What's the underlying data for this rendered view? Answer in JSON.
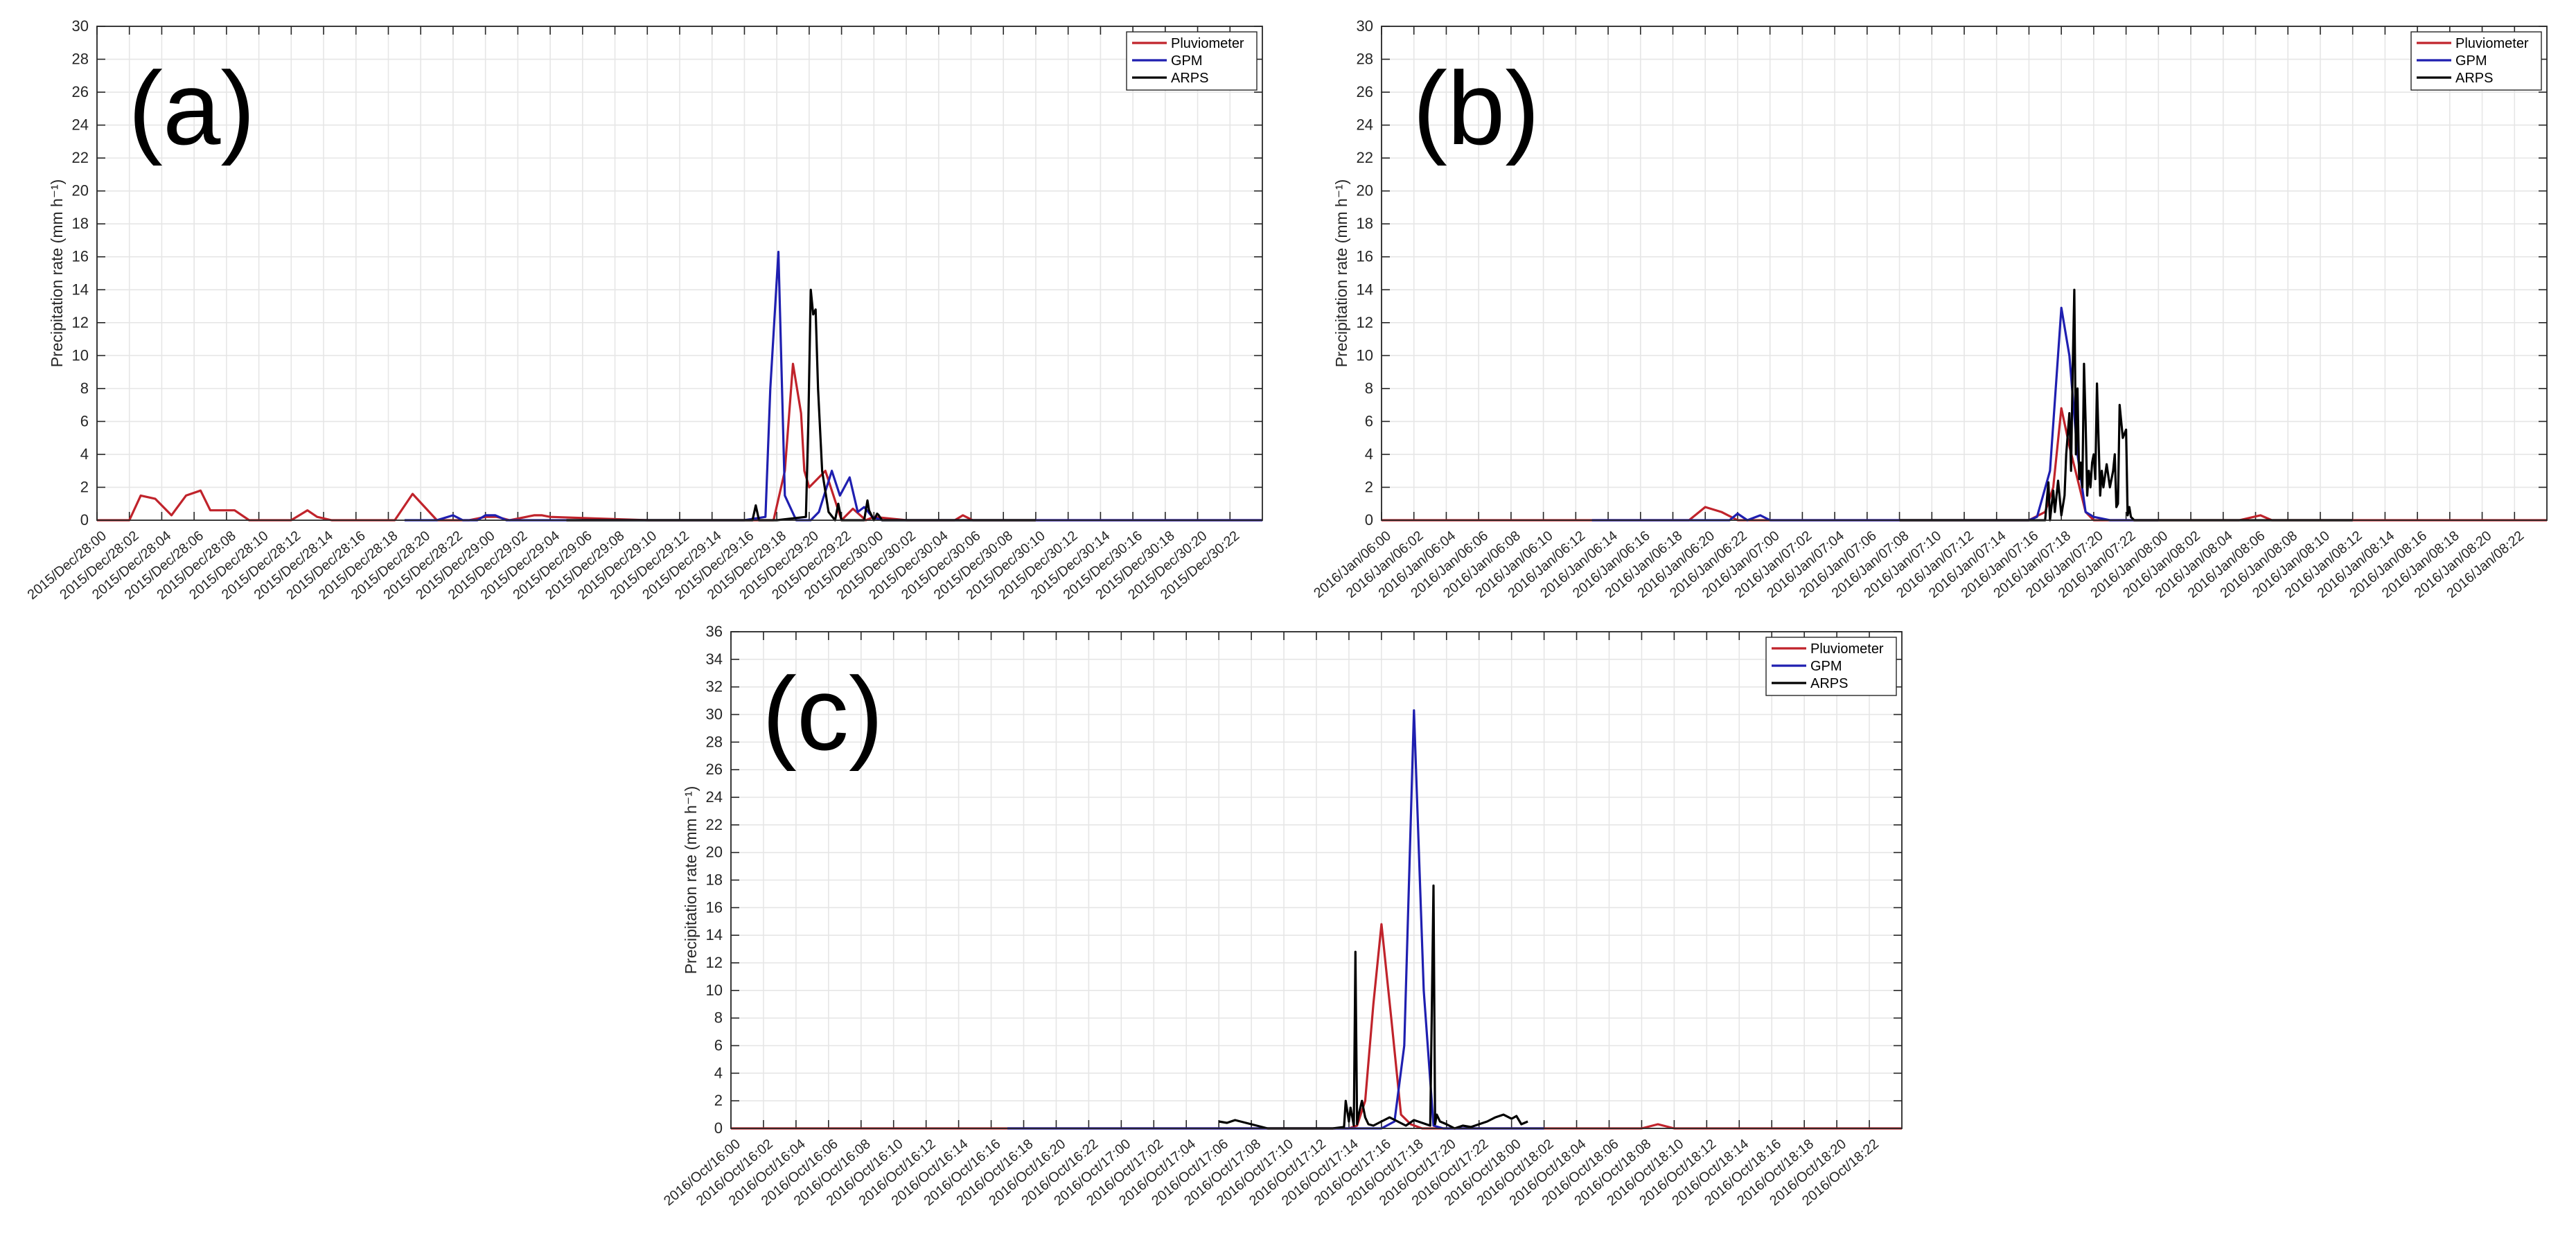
{
  "colors": {
    "Pluviometer": "#c0232b",
    "GPM": "#1f1fb0",
    "ARPS": "#000000",
    "grid": "#e6e6e6",
    "axis": "#262626"
  },
  "chart_data": [
    {
      "type": "line",
      "panel_label": "(a)",
      "ylabel": "Precipitation rate (mm h⁻¹)",
      "ylim": [
        0,
        30
      ],
      "yticks": [
        0,
        2,
        4,
        6,
        8,
        10,
        12,
        14,
        16,
        18,
        20,
        22,
        24,
        26,
        28,
        30
      ],
      "x_unit": "hours since 2015/Dec/28:00",
      "xlim": [
        0,
        72
      ],
      "grid": true,
      "legend_position": "top-right",
      "categories": [
        "2015/Dec/28:00",
        "2015/Dec/28:02",
        "2015/Dec/28:04",
        "2015/Dec/28:06",
        "2015/Dec/28:08",
        "2015/Dec/28:10",
        "2015/Dec/28:12",
        "2015/Dec/28:14",
        "2015/Dec/28:16",
        "2015/Dec/28:18",
        "2015/Dec/28:20",
        "2015/Dec/28:22",
        "2015/Dec/29:00",
        "2015/Dec/29:02",
        "2015/Dec/29:04",
        "2015/Dec/29:06",
        "2015/Dec/29:08",
        "2015/Dec/29:10",
        "2015/Dec/29:12",
        "2015/Dec/29:14",
        "2015/Dec/29:16",
        "2015/Dec/29:18",
        "2015/Dec/29:20",
        "2015/Dec/29:22",
        "2015/Dec/30:00",
        "2015/Dec/30:02",
        "2015/Dec/30:04",
        "2015/Dec/30:06",
        "2015/Dec/30:08",
        "2015/Dec/30:10",
        "2015/Dec/30:12",
        "2015/Dec/30:14",
        "2015/Dec/30:16",
        "2015/Dec/30:18",
        "2015/Dec/30:20",
        "2015/Dec/30:22"
      ],
      "series": [
        {
          "name": "Pluviometer",
          "x": [
            0,
            2,
            2.7,
            3.6,
            4.6,
            5.5,
            6.4,
            7,
            8.5,
            9.4,
            10,
            12,
            13,
            13.6,
            14.5,
            17,
            18.4,
            19.5,
            21,
            22.4,
            23,
            24,
            24.7,
            25.5,
            27,
            27.5,
            28,
            34,
            41,
            41.8,
            42.5,
            43,
            43.5,
            43.7,
            44,
            44.5,
            45,
            46,
            46.7,
            47.5,
            48,
            50,
            53,
            53.5,
            54.1,
            55,
            72
          ],
          "y": [
            0,
            0,
            1.5,
            1.3,
            0.3,
            1.5,
            1.8,
            0.6,
            0.6,
            0,
            0,
            0,
            0.6,
            0.2,
            0,
            0,
            0,
            1.6,
            0,
            0,
            0,
            0.2,
            0.2,
            0,
            0.3,
            0.3,
            0.2,
            0,
            0,
            0,
            3,
            9.5,
            6.5,
            3,
            2,
            2.5,
            3,
            0,
            0.7,
            0,
            0.2,
            0,
            0,
            0.3,
            0,
            0,
            0
          ]
        },
        {
          "name": "GPM",
          "x": [
            19,
            21,
            22,
            22.6,
            23.5,
            24,
            24.6,
            25.3,
            26,
            27,
            28,
            30,
            39,
            40,
            41.3,
            41.6,
            42.1,
            42.5,
            43.2,
            44.1,
            44.6,
            45.4,
            45.9,
            46.5,
            47,
            47.4,
            47.9,
            48.5,
            50,
            72
          ],
          "y": [
            0,
            0,
            0.3,
            0,
            0,
            0.3,
            0.3,
            0,
            0,
            0,
            0,
            0,
            0,
            0,
            0.2,
            8,
            16.3,
            1.5,
            0,
            0,
            0.5,
            3,
            1.5,
            2.6,
            0.5,
            0.8,
            0.2,
            0,
            0,
            0
          ]
        },
        {
          "name": "ARPS",
          "x": [
            29,
            40,
            40.5,
            40.7,
            40.9,
            41.2,
            42,
            43.8,
            43.95,
            44.1,
            44.25,
            44.4,
            44.55,
            44.8,
            45.2,
            45.6,
            45.8,
            46,
            46.4,
            47.4,
            47.6,
            47.7,
            48,
            48.2,
            48.3,
            48.5,
            48.6,
            49,
            58
          ],
          "y": [
            0,
            0,
            0,
            0.9,
            0,
            0,
            0,
            0.2,
            6,
            14,
            12.5,
            12.8,
            8,
            3,
            0.5,
            0,
            1,
            0,
            0,
            0,
            1.2,
            0.6,
            0,
            0.4,
            0.3,
            0,
            0,
            0,
            0
          ]
        }
      ]
    },
    {
      "type": "line",
      "panel_label": "(b)",
      "ylabel": "Precipitation rate (mm h⁻¹)",
      "ylim": [
        0,
        30
      ],
      "yticks": [
        0,
        2,
        4,
        6,
        8,
        10,
        12,
        14,
        16,
        18,
        20,
        22,
        24,
        26,
        28,
        30
      ],
      "x_unit": "hours since 2016/Jan/06:00",
      "xlim": [
        0,
        72
      ],
      "grid": true,
      "legend_position": "top-right",
      "categories": [
        "2016/Jan/06:00",
        "2016/Jan/06:02",
        "2016/Jan/06:04",
        "2016/Jan/06:06",
        "2016/Jan/06:08",
        "2016/Jan/06:10",
        "2016/Jan/06:12",
        "2016/Jan/06:14",
        "2016/Jan/06:16",
        "2016/Jan/06:18",
        "2016/Jan/06:20",
        "2016/Jan/06:22",
        "2016/Jan/07:00",
        "2016/Jan/07:02",
        "2016/Jan/07:04",
        "2016/Jan/07:06",
        "2016/Jan/07:08",
        "2016/Jan/07:10",
        "2016/Jan/07:12",
        "2016/Jan/07:14",
        "2016/Jan/07:16",
        "2016/Jan/07:18",
        "2016/Jan/07:20",
        "2016/Jan/07:22",
        "2016/Jan/08:00",
        "2016/Jan/08:02",
        "2016/Jan/08:04",
        "2016/Jan/08:06",
        "2016/Jan/08:08",
        "2016/Jan/08:10",
        "2016/Jan/08:12",
        "2016/Jan/08:14",
        "2016/Jan/08:16",
        "2016/Jan/08:18",
        "2016/Jan/08:20",
        "2016/Jan/08:22"
      ],
      "series": [
        {
          "name": "Pluviometer",
          "x": [
            0,
            19,
            20,
            21,
            22,
            23,
            40,
            41,
            41.5,
            42,
            42.5,
            43,
            43.5,
            44,
            45,
            49,
            53,
            54.3,
            55,
            72
          ],
          "y": [
            0,
            0,
            0.8,
            0.5,
            0,
            0,
            0,
            0.5,
            2,
            6.8,
            4.5,
            2.5,
            0.5,
            0,
            0,
            0,
            0,
            0.3,
            0,
            0
          ]
        },
        {
          "name": "GPM",
          "x": [
            13,
            21,
            21.5,
            22,
            22.6,
            23.4,
            24,
            30,
            36,
            39,
            40,
            40.5,
            41.3,
            42,
            42.5,
            43,
            43.5,
            44,
            45,
            48
          ],
          "y": [
            0,
            0,
            0,
            0.4,
            0,
            0.3,
            0,
            0,
            0,
            0,
            0,
            0.2,
            3,
            12.9,
            10,
            4,
            0.5,
            0.2,
            0,
            0
          ]
        },
        {
          "name": "ARPS",
          "x": [
            32,
            41,
            41.2,
            41.3,
            41.5,
            41.6,
            41.8,
            42,
            42.2,
            42.3,
            42.5,
            42.6,
            42.7,
            42.8,
            42.9,
            43,
            43.1,
            43.2,
            43.3,
            43.4,
            43.5,
            43.6,
            43.7,
            43.8,
            43.9,
            44,
            44.1,
            44.2,
            44.4,
            44.5,
            44.6,
            44.8,
            45,
            45.2,
            45.3,
            45.4,
            45.5,
            45.6,
            45.8,
            46,
            46.1,
            46.2,
            46.3,
            46.5,
            46.6,
            47,
            60
          ],
          "y": [
            0,
            0,
            2.3,
            0,
            1.8,
            0.5,
            2.4,
            0.3,
            1.5,
            4,
            6.5,
            3,
            9,
            14,
            4,
            8,
            2.5,
            3.5,
            2,
            9.5,
            6,
            1.5,
            3,
            2,
            3.5,
            4,
            2.5,
            8.3,
            1.5,
            3,
            2,
            3.4,
            2,
            3,
            4,
            0.8,
            1,
            7,
            5,
            5.5,
            0.3,
            0.8,
            0.2,
            0,
            0,
            0,
            0
          ]
        }
      ]
    },
    {
      "type": "line",
      "panel_label": "(c)",
      "ylabel": "Precipitation rate (mm h⁻¹)",
      "ylim": [
        0,
        36
      ],
      "yticks": [
        0,
        2,
        4,
        6,
        8,
        10,
        12,
        14,
        16,
        18,
        20,
        22,
        24,
        26,
        28,
        30,
        32,
        34,
        36
      ],
      "x_unit": "hours since 2016/Oct/16:00",
      "xlim": [
        0,
        72
      ],
      "grid": true,
      "legend_position": "top-right",
      "categories": [
        "2016/Oct/16:00",
        "2016/Oct/16:02",
        "2016/Oct/16:04",
        "2016/Oct/16:06",
        "2016/Oct/16:08",
        "2016/Oct/16:10",
        "2016/Oct/16:12",
        "2016/Oct/16:14",
        "2016/Oct/16:16",
        "2016/Oct/16:18",
        "2016/Oct/16:20",
        "2016/Oct/16:22",
        "2016/Oct/17:00",
        "2016/Oct/17:02",
        "2016/Oct/17:04",
        "2016/Oct/17:06",
        "2016/Oct/17:08",
        "2016/Oct/17:10",
        "2016/Oct/17:12",
        "2016/Oct/17:14",
        "2016/Oct/17:16",
        "2016/Oct/17:18",
        "2016/Oct/17:20",
        "2016/Oct/17:22",
        "2016/Oct/18:00",
        "2016/Oct/18:02",
        "2016/Oct/18:04",
        "2016/Oct/18:06",
        "2016/Oct/18:08",
        "2016/Oct/18:10",
        "2016/Oct/18:12",
        "2016/Oct/18:14",
        "2016/Oct/18:16",
        "2016/Oct/18:18",
        "2016/Oct/18:20",
        "2016/Oct/18:22"
      ],
      "series": [
        {
          "name": "Pluviometer",
          "x": [
            0,
            38,
            38.5,
            39,
            39.5,
            40,
            40.6,
            41.2,
            41.8,
            42.5,
            43,
            48,
            56,
            57,
            58,
            72
          ],
          "y": [
            0,
            0,
            0.2,
            2,
            9,
            14.8,
            8,
            1,
            0.3,
            0,
            0,
            0,
            0,
            0.3,
            0,
            0
          ]
        },
        {
          "name": "GPM",
          "x": [
            17,
            40,
            40.8,
            41.4,
            42,
            42.6,
            43.2,
            43.8,
            44.5,
            47,
            50
          ],
          "y": [
            0,
            0,
            0.5,
            6,
            30.3,
            10,
            0.2,
            0,
            0,
            0,
            0
          ]
        },
        {
          "name": "ARPS",
          "x": [
            30,
            30.5,
            31,
            32,
            33,
            34,
            35,
            36,
            37,
            37.7,
            37.8,
            38,
            38.1,
            38.3,
            38.4,
            38.5,
            38.6,
            38.8,
            39,
            39.2,
            39.5,
            40,
            40.5,
            41,
            41.5,
            42,
            42.5,
            43,
            43.2,
            43.3,
            43.4,
            43.6,
            44,
            44.5,
            45,
            45.5,
            46,
            46.5,
            47,
            47.5,
            48,
            48.3,
            48.6,
            49
          ],
          "y": [
            0.5,
            0.4,
            0.6,
            0.3,
            0,
            0,
            0,
            0,
            0,
            0.1,
            2,
            0.5,
            1.5,
            0.2,
            12.8,
            0.3,
            1,
            2,
            0.8,
            0.3,
            0.2,
            0.5,
            0.8,
            0.5,
            0.2,
            0.6,
            0.4,
            0.2,
            17.6,
            0.3,
            1,
            0.5,
            0.3,
            0,
            0.2,
            0.1,
            0.3,
            0.5,
            0.8,
            1,
            0.7,
            0.9,
            0.3,
            0.5
          ]
        }
      ]
    }
  ]
}
